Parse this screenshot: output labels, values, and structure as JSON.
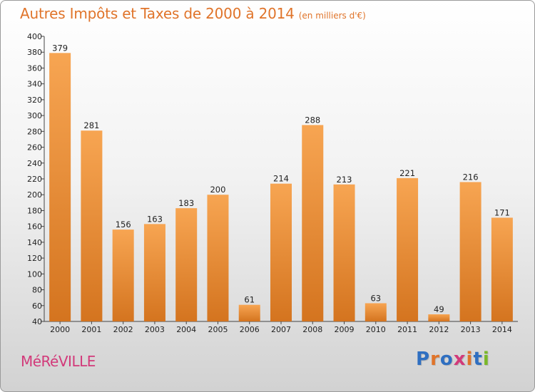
{
  "header": {
    "title": "Autres Impôts et Taxes de 2000 à 2014",
    "unit": "(en milliers d'€)"
  },
  "footer": {
    "commune": "MéRéVILLE",
    "brand_letters": [
      "P",
      "r",
      "o",
      "x",
      "i",
      "t",
      "i"
    ],
    "brand_colors": [
      "#2f6fc1",
      "#e0742a",
      "#2f6fc1",
      "#d23a7a",
      "#e0742a",
      "#2f6fc1",
      "#7ab829"
    ]
  },
  "colors": {
    "bar_top": "#f7a552",
    "bar_bottom": "#d4741f",
    "axis": "#444444",
    "title": "#e0742a",
    "commune": "#d23a7a"
  },
  "chart_data": {
    "type": "bar",
    "title": "Autres Impôts et Taxes de 2000 à 2014",
    "subtitle": "(en milliers d'€)",
    "categories": [
      "2000",
      "2001",
      "2002",
      "2003",
      "2004",
      "2005",
      "2006",
      "2007",
      "2008",
      "2009",
      "2010",
      "2011",
      "2012",
      "2013",
      "2014"
    ],
    "values": [
      379,
      281,
      156,
      163,
      183,
      200,
      61,
      214,
      288,
      213,
      63,
      221,
      49,
      216,
      171
    ],
    "value_labels": [
      "379",
      "281",
      "156",
      "163",
      "183",
      "200",
      "61",
      "214",
      "288",
      "213",
      "63",
      "221",
      "49",
      "216",
      "171"
    ],
    "ylim": [
      40,
      400
    ],
    "yticks": [
      "40",
      "60",
      "80",
      "100",
      "120",
      "140",
      "160",
      "180",
      "200",
      "220",
      "240",
      "260",
      "280",
      "300",
      "320",
      "340",
      "360",
      "380",
      "400"
    ],
    "grid": false,
    "legend": "none"
  }
}
